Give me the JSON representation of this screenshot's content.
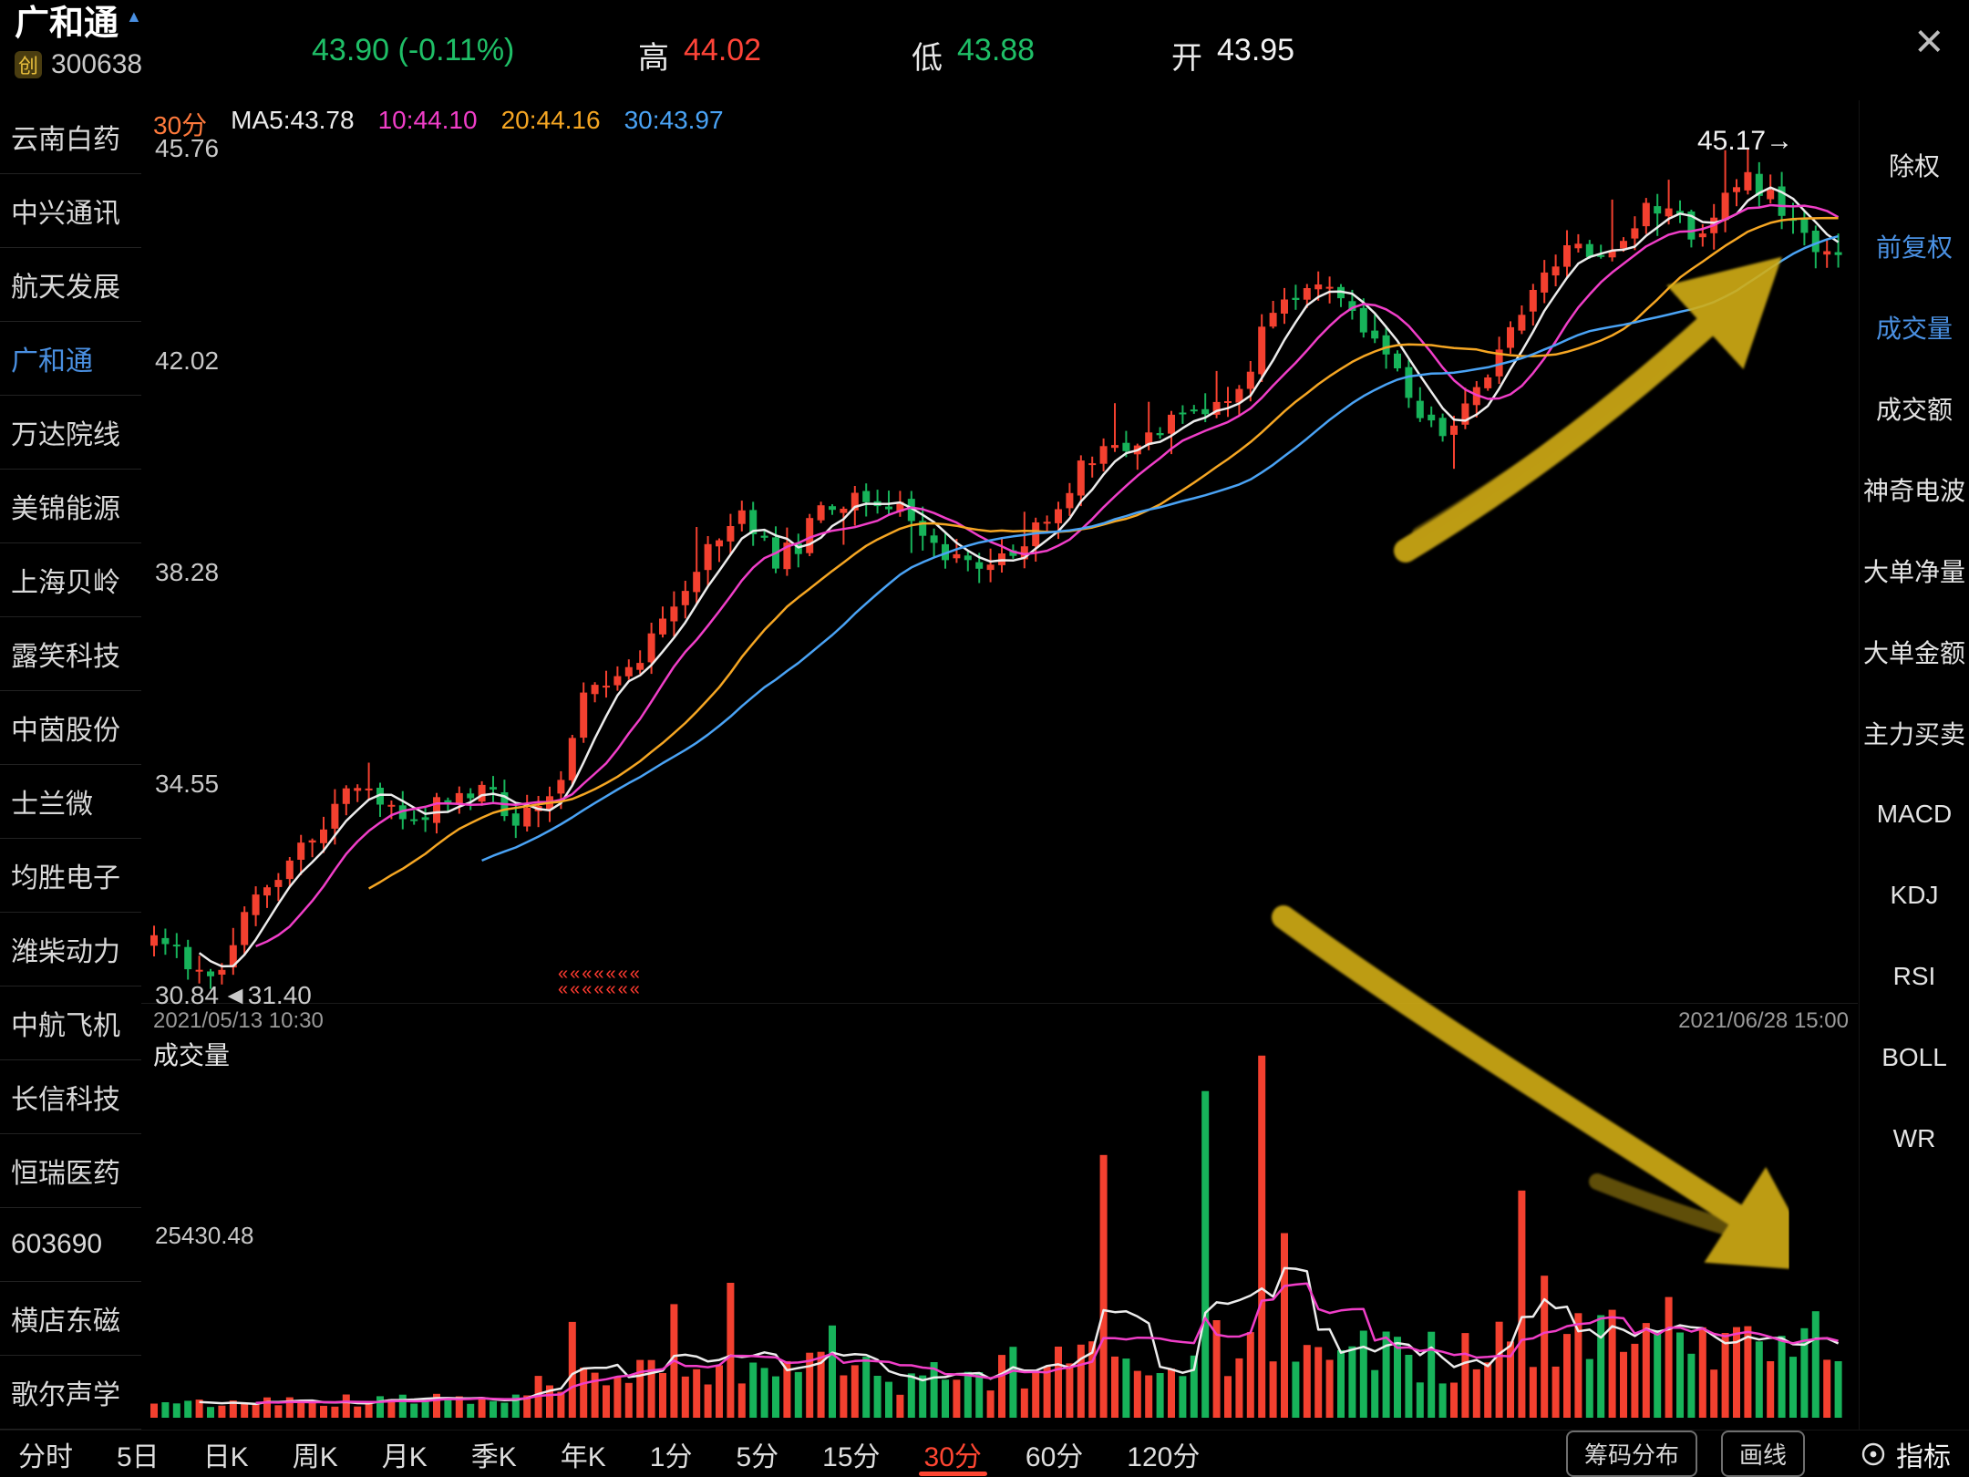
{
  "header": {
    "stock_name": "广和通",
    "caret": "▲",
    "board_badge": "创",
    "stock_code": "300638",
    "price": "43.90 (-0.11%)",
    "high_label": "高",
    "high_value": "44.02",
    "low_label": "低",
    "low_value": "43.88",
    "open_label": "开",
    "open_value": "43.95",
    "close_label": "×"
  },
  "watchlist": {
    "items": [
      "云南白药",
      "中兴通讯",
      "航天发展",
      "广和通",
      "万达院线",
      "美锦能源",
      "上海贝岭",
      "露笑科技",
      "中茵股份",
      "士兰微",
      "均胜电子",
      "潍柴动力",
      "中航飞机",
      "长信科技",
      "恒瑞医药",
      "603690",
      "横店东磁",
      "歌尔声学"
    ],
    "selected_index": 3
  },
  "indicator_panel": {
    "items": [
      "除权",
      "前复权",
      "成交量",
      "成交额",
      "神奇电波",
      "大单净量",
      "大单金额",
      "主力买卖",
      "MACD",
      "KDJ",
      "RSI",
      "BOLL",
      "WR"
    ],
    "active_indices": [
      1,
      2
    ]
  },
  "annotation": {
    "line1": "«««««««",
    "line2": "«««««««"
  },
  "bottom_bar": {
    "periods": [
      "分时",
      "5日",
      "日K",
      "周K",
      "月K",
      "季K",
      "年K",
      "1分",
      "5分",
      "15分",
      "30分",
      "60分",
      "120分"
    ],
    "active_index": 10,
    "buttons": [
      "筹码分布",
      "画线"
    ],
    "indicator_label": "指标"
  },
  "chart_data": {
    "type": "candlestick",
    "period": "30分",
    "candle_count": 150,
    "price_range": [
      30.84,
      45.76
    ],
    "y_axis_ticks": [
      "45.76",
      "42.02",
      "38.28",
      "34.55",
      "30.84"
    ],
    "x_start_label": "2021/05/13 10:30",
    "x_end_label": "2021/06/28 15:00",
    "latest_high_marker": "45.17→",
    "baseline_marker": "◄31.40",
    "up_color": "#f3402f",
    "down_color": "#17b35a",
    "ma_legend": [
      {
        "label": "MA5:43.78",
        "color": "#ececec"
      },
      {
        "label": "10:44.10",
        "color": "#f03ec8"
      },
      {
        "label": "20:44.16",
        "color": "#f5a623"
      },
      {
        "label": "30:43.97",
        "color": "#4aa3f5"
      }
    ],
    "trend_anchors": [
      [
        0,
        31.9
      ],
      [
        0.02,
        31.4
      ],
      [
        0.035,
        31.1
      ],
      [
        0.055,
        32.4
      ],
      [
        0.085,
        33.3
      ],
      [
        0.115,
        34.5
      ],
      [
        0.135,
        34.2
      ],
      [
        0.165,
        34.1
      ],
      [
        0.195,
        34.5
      ],
      [
        0.215,
        34.0
      ],
      [
        0.235,
        34.2
      ],
      [
        0.255,
        36.0
      ],
      [
        0.285,
        36.8
      ],
      [
        0.305,
        37.4
      ],
      [
        0.33,
        38.9
      ],
      [
        0.35,
        39.4
      ],
      [
        0.37,
        38.5
      ],
      [
        0.385,
        38.9
      ],
      [
        0.405,
        39.7
      ],
      [
        0.425,
        39.4
      ],
      [
        0.445,
        39.5
      ],
      [
        0.465,
        38.8
      ],
      [
        0.49,
        38.3
      ],
      [
        0.515,
        38.8
      ],
      [
        0.545,
        39.9
      ],
      [
        0.565,
        40.6
      ],
      [
        0.59,
        40.7
      ],
      [
        0.615,
        41.1
      ],
      [
        0.64,
        41.3
      ],
      [
        0.66,
        42.6
      ],
      [
        0.68,
        43.4
      ],
      [
        0.695,
        43.6
      ],
      [
        0.715,
        42.8
      ],
      [
        0.73,
        42.2
      ],
      [
        0.745,
        41.3
      ],
      [
        0.765,
        40.6
      ],
      [
        0.785,
        41.5
      ],
      [
        0.805,
        42.4
      ],
      [
        0.825,
        43.4
      ],
      [
        0.84,
        44.3
      ],
      [
        0.855,
        43.7
      ],
      [
        0.875,
        44.4
      ],
      [
        0.895,
        44.8
      ],
      [
        0.91,
        44.3
      ],
      [
        0.93,
        44.7
      ],
      [
        0.945,
        45.2
      ],
      [
        0.96,
        44.9
      ],
      [
        0.975,
        44.3
      ],
      [
        0.99,
        44.0
      ],
      [
        1,
        43.9
      ]
    ],
    "volume": {
      "title": "成交量",
      "axis_tick": "25430.48",
      "max": 52000,
      "base_anchors": [
        [
          0,
          2000
        ],
        [
          0.2,
          2600
        ],
        [
          0.25,
          5200
        ],
        [
          0.35,
          7600
        ],
        [
          0.45,
          5600
        ],
        [
          0.55,
          8200
        ],
        [
          0.65,
          10500
        ],
        [
          0.75,
          8200
        ],
        [
          0.85,
          11000
        ],
        [
          1,
          8600
        ]
      ],
      "spikes": [
        [
          0.245,
          13500
        ],
        [
          0.31,
          16000
        ],
        [
          0.345,
          19000
        ],
        [
          0.405,
          13000
        ],
        [
          0.565,
          37000
        ],
        [
          0.627,
          46000
        ],
        [
          0.657,
          51000
        ],
        [
          0.668,
          26000
        ],
        [
          0.815,
          32000
        ],
        [
          0.826,
          20000
        ],
        [
          0.9,
          17000
        ],
        [
          0.985,
          15000
        ]
      ],
      "ma_colors": [
        "#ececec",
        "#f03ec8"
      ]
    },
    "annotations": [
      {
        "type": "arrow",
        "direction": "up-right",
        "color": "#d3ae17"
      },
      {
        "type": "arrow",
        "direction": "down-right",
        "color": "#d3ae17"
      }
    ]
  }
}
